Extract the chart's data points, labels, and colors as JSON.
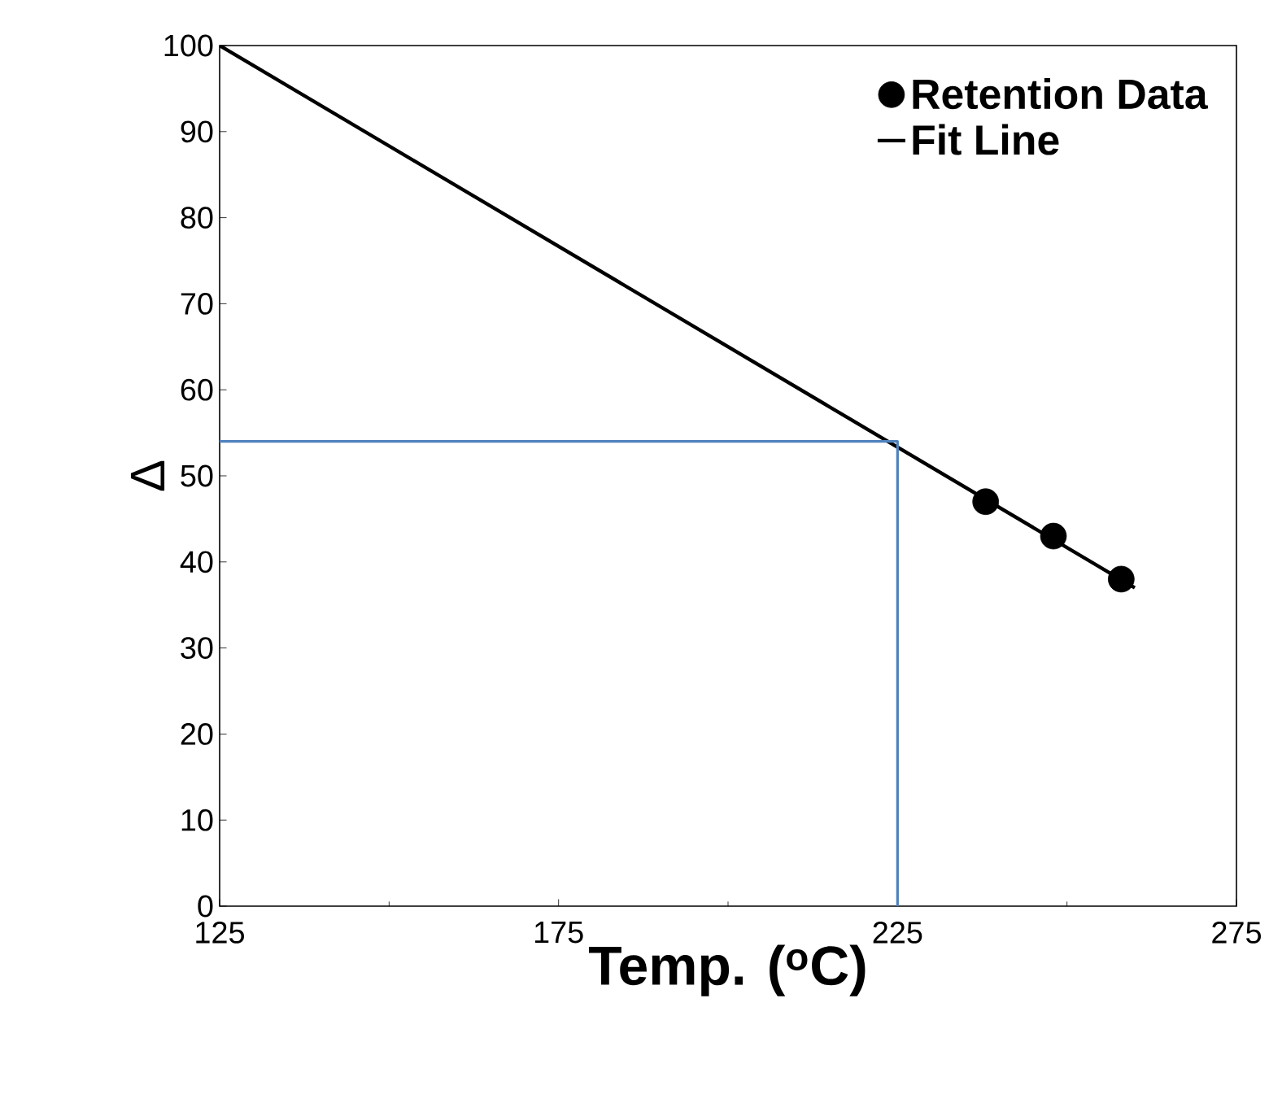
{
  "chart_data": {
    "type": "scatter",
    "xlabel": "Temp. ($^{o}$C)",
    "ylabel": "Δ",
    "xlim": [
      125,
      275
    ],
    "xticks": [
      125,
      175,
      225,
      275
    ],
    "ylim": [
      0,
      100
    ],
    "yticks": [
      0,
      10,
      20,
      30,
      40,
      50,
      60,
      70,
      80,
      90,
      100
    ],
    "grid": false,
    "legend": "top right",
    "series": [
      {
        "name": "Retention Data",
        "marker": "circle",
        "color": "#000000",
        "x": [
          238,
          248,
          258
        ],
        "values": [
          47,
          43,
          38
        ]
      },
      {
        "name": "Fit Line",
        "type": "line",
        "marker": "none",
        "color": "#000000",
        "x": [
          125,
          260
        ],
        "values": [
          100,
          37
        ]
      },
      {
        "type": "line",
        "marker": "none",
        "color": "#4f81bd",
        "x": [
          125,
          225,
          225
        ],
        "values": [
          54,
          54,
          0
        ]
      }
    ]
  }
}
